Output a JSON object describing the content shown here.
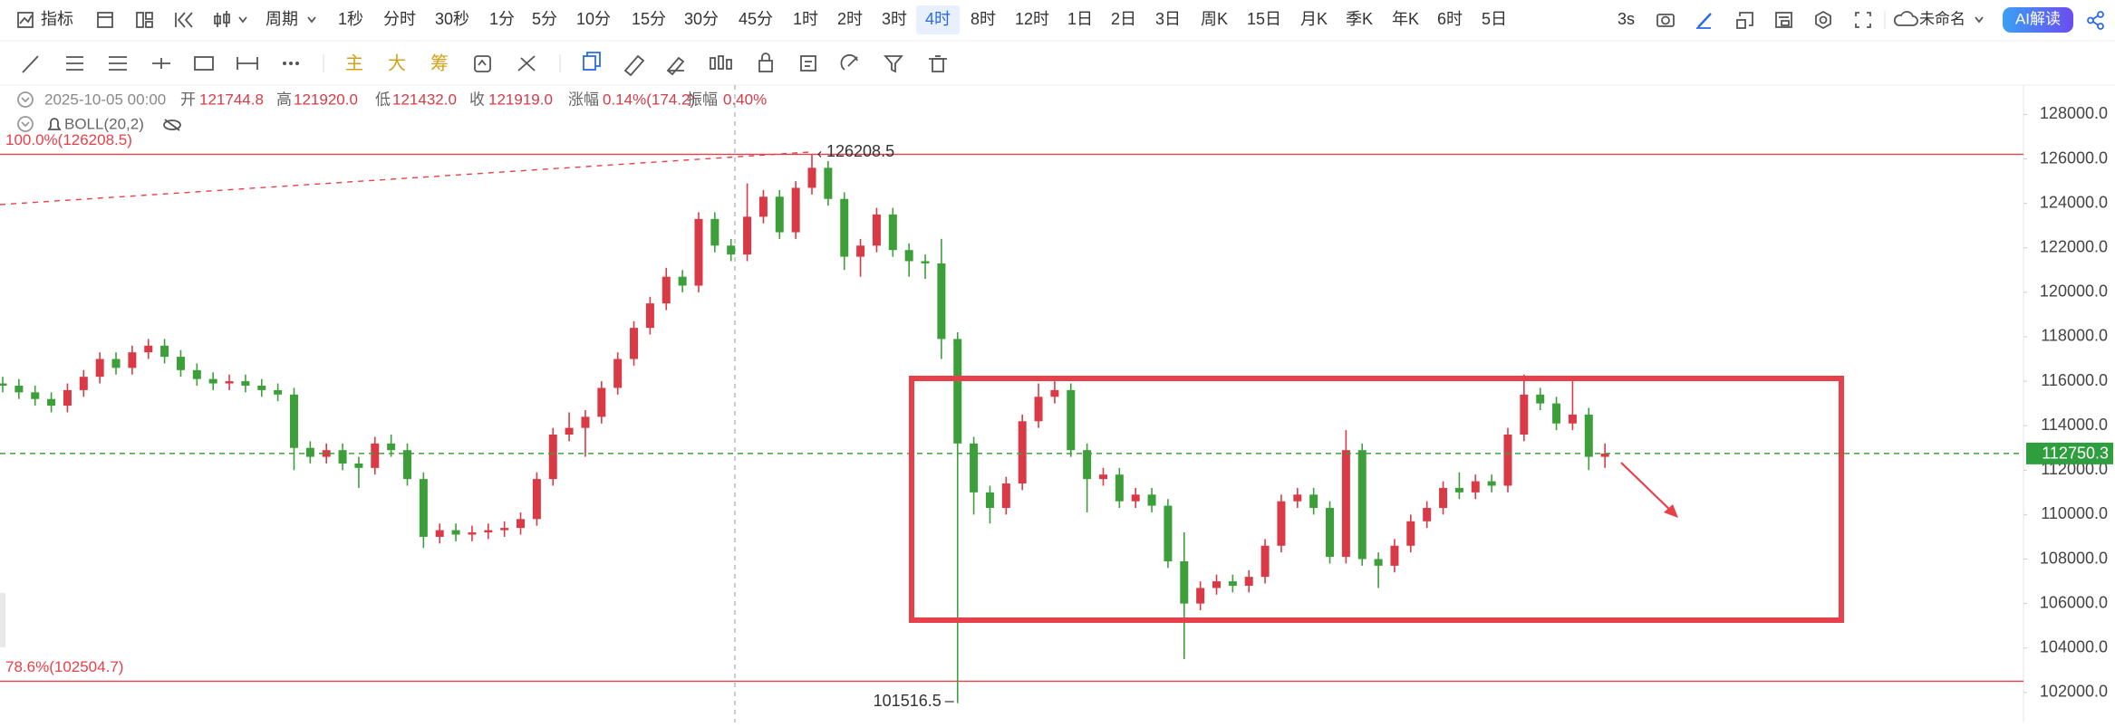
{
  "toolbar": {
    "indicator": "指标",
    "period": "周期",
    "periods": [
      "1秒",
      "分时",
      "30秒",
      "1分",
      "5分",
      "10分",
      "15分",
      "30分",
      "45分",
      "1时",
      "2时",
      "3时",
      "4时",
      "8时",
      "12时",
      "1日",
      "2日",
      "3日",
      "周K",
      "15日",
      "月K",
      "季K",
      "年K",
      "6时",
      "5日"
    ],
    "selected_period": "4时",
    "refresh": "3s",
    "layout_name": "未命名",
    "ai": "AI解读"
  },
  "drawing_tools": {
    "main": "主",
    "big": "大",
    "chips": "筹"
  },
  "info": {
    "time": "2025-10-05 00:00",
    "open_label": "开",
    "open": "121744.8",
    "high_label": "高",
    "high": "121920.0",
    "low_label": "低",
    "low": "121432.0",
    "close_label": "收",
    "close": "121919.0",
    "change_label": "涨幅",
    "change": "0.14%(174.2)",
    "amplitude_label": "振幅",
    "amplitude": "0.40%",
    "indicator": "BOLL(20,2)"
  },
  "chart_data": {
    "type": "candlestick",
    "up_color": "#d93a46",
    "down_color": "#3d9f3a",
    "ylim": [
      100650,
      129320
    ],
    "yticks": [
      {
        "value": 102000,
        "label": "102000.0"
      },
      {
        "value": 104000,
        "label": "104000.0"
      },
      {
        "value": 106000,
        "label": "106000.0"
      },
      {
        "value": 108000,
        "label": "108000.0"
      },
      {
        "value": 110000,
        "label": "110000.0"
      },
      {
        "value": 112000,
        "label": "112000.0"
      },
      {
        "value": 114000,
        "label": "114000.0"
      },
      {
        "value": 116000,
        "label": "116000.0"
      },
      {
        "value": 118000,
        "label": "118000.0"
      },
      {
        "value": 120000,
        "label": "120000.0"
      },
      {
        "value": 122000,
        "label": "122000.0"
      },
      {
        "value": 124000,
        "label": "124000.0"
      },
      {
        "value": 126000,
        "label": "126000.0"
      },
      {
        "value": 128000,
        "label": "128000.0"
      }
    ],
    "fib_levels": [
      {
        "label": "100.0%(126208.5)",
        "value": 126208.5
      },
      {
        "label": "78.6%(102504.7)",
        "value": 102504.7
      }
    ],
    "candles": [
      [
        115900,
        116200,
        115500,
        115800
      ],
      [
        115800,
        116100,
        115200,
        115500
      ],
      [
        115500,
        115800,
        114900,
        115200
      ],
      [
        115200,
        115500,
        114600,
        114900
      ],
      [
        114900,
        115900,
        114600,
        115600
      ],
      [
        115600,
        116500,
        115300,
        116200
      ],
      [
        116200,
        117300,
        115900,
        117000
      ],
      [
        117000,
        117300,
        116300,
        116600
      ],
      [
        116600,
        117600,
        116300,
        117300
      ],
      [
        117300,
        117900,
        117000,
        117600
      ],
      [
        117600,
        117900,
        116800,
        117100
      ],
      [
        117100,
        117400,
        116200,
        116500
      ],
      [
        116500,
        116800,
        115800,
        116100
      ],
      [
        116100,
        116400,
        115600,
        115900
      ],
      [
        115900,
        116300,
        115600,
        116000
      ],
      [
        116000,
        116300,
        115500,
        115800
      ],
      [
        115800,
        116100,
        115300,
        115600
      ],
      [
        115600,
        115900,
        115100,
        115400
      ],
      [
        115400,
        115700,
        112000,
        113000
      ],
      [
        113000,
        113300,
        112300,
        112600
      ],
      [
        112600,
        113200,
        112300,
        112900
      ],
      [
        112900,
        113200,
        112000,
        112300
      ],
      [
        112300,
        112600,
        111200,
        112100
      ],
      [
        112100,
        113500,
        111800,
        113200
      ],
      [
        113200,
        113600,
        112600,
        112900
      ],
      [
        112900,
        113200,
        111300,
        111600
      ],
      [
        111600,
        111900,
        108500,
        109000
      ],
      [
        109000,
        109600,
        108700,
        109300
      ],
      [
        109300,
        109600,
        108800,
        109100
      ],
      [
        109100,
        109500,
        108800,
        109200
      ],
      [
        109200,
        109600,
        108900,
        109300
      ],
      [
        109300,
        109700,
        109000,
        109400
      ],
      [
        109400,
        110100,
        109100,
        109800
      ],
      [
        109800,
        111900,
        109500,
        111600
      ],
      [
        111600,
        113900,
        111300,
        113600
      ],
      [
        113600,
        114600,
        113300,
        113900
      ],
      [
        113900,
        114700,
        112600,
        114400
      ],
      [
        114400,
        116000,
        114100,
        115700
      ],
      [
        115700,
        117300,
        115400,
        117000
      ],
      [
        117000,
        118700,
        116700,
        118400
      ],
      [
        118400,
        119800,
        118100,
        119500
      ],
      [
        119500,
        121100,
        119200,
        120700
      ],
      [
        120700,
        121000,
        120000,
        120300
      ],
      [
        120300,
        123600,
        120000,
        123300
      ],
      [
        123300,
        123600,
        121800,
        122100
      ],
      [
        122100,
        122400,
        121400,
        121700
      ],
      [
        121700,
        124900,
        121400,
        123400
      ],
      [
        123400,
        124600,
        123100,
        124300
      ],
      [
        124300,
        124600,
        122400,
        122700
      ],
      [
        122700,
        125000,
        122400,
        124700
      ],
      [
        124700,
        126208.5,
        124400,
        125600
      ],
      [
        125600,
        125900,
        123900,
        124200
      ],
      [
        124200,
        124500,
        121000,
        121600
      ],
      [
        121600,
        122400,
        120700,
        122100
      ],
      [
        122100,
        123800,
        121800,
        123500
      ],
      [
        123500,
        123800,
        121600,
        121900
      ],
      [
        121900,
        122200,
        120700,
        121400
      ],
      [
        121400,
        121700,
        120600,
        121300
      ],
      [
        121300,
        122400,
        117000,
        117900
      ],
      [
        117900,
        118200,
        101516.5,
        113200
      ],
      [
        113200,
        113500,
        110000,
        111000
      ],
      [
        111000,
        111300,
        109600,
        110300
      ],
      [
        110300,
        111700,
        110000,
        111400
      ],
      [
        111400,
        114500,
        111100,
        114200
      ],
      [
        114200,
        115900,
        113900,
        115300
      ],
      [
        115300,
        116000,
        115000,
        115600
      ],
      [
        115600,
        115900,
        112600,
        112900
      ],
      [
        112900,
        113200,
        110100,
        111600
      ],
      [
        111600,
        112100,
        111300,
        111800
      ],
      [
        111800,
        112100,
        110300,
        110600
      ],
      [
        110600,
        111200,
        110300,
        110900
      ],
      [
        110900,
        111200,
        110100,
        110400
      ],
      [
        110400,
        110700,
        107600,
        107900
      ],
      [
        107900,
        109200,
        103500,
        106000
      ],
      [
        106000,
        107000,
        105700,
        106700
      ],
      [
        106700,
        107300,
        106400,
        107000
      ],
      [
        107000,
        107300,
        106500,
        106800
      ],
      [
        106800,
        107500,
        106500,
        107200
      ],
      [
        107200,
        108900,
        106900,
        108600
      ],
      [
        108600,
        110900,
        108300,
        110600
      ],
      [
        110600,
        111200,
        110300,
        110900
      ],
      [
        110900,
        111200,
        110000,
        110300
      ],
      [
        110300,
        110600,
        107800,
        108100
      ],
      [
        108100,
        113800,
        107800,
        112900
      ],
      [
        112900,
        113200,
        107700,
        108000
      ],
      [
        108000,
        108300,
        106700,
        107700
      ],
      [
        107700,
        108900,
        107400,
        108600
      ],
      [
        108600,
        110000,
        108300,
        109700
      ],
      [
        109700,
        110600,
        109400,
        110300
      ],
      [
        110300,
        111500,
        110000,
        111200
      ],
      [
        111200,
        111900,
        110700,
        111000
      ],
      [
        111000,
        111800,
        110700,
        111500
      ],
      [
        111500,
        111800,
        111000,
        111300
      ],
      [
        111300,
        113900,
        111000,
        113600
      ],
      [
        113600,
        116300,
        113300,
        115400
      ],
      [
        115400,
        115700,
        114700,
        115000
      ],
      [
        115000,
        115300,
        113800,
        114100
      ],
      [
        114100,
        116000,
        113800,
        114500
      ],
      [
        114500,
        114800,
        112000,
        112600
      ],
      [
        112600,
        113200,
        112100,
        112750.3
      ]
    ]
  }
}
